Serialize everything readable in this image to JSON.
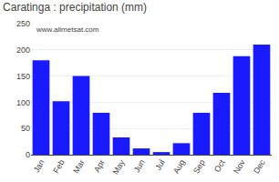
{
  "chart_data": {
    "type": "bar",
    "title": "Caratinga : precipitation (mm)",
    "categories": [
      "Jan",
      "Feb",
      "Mar",
      "Apr",
      "May",
      "Jun",
      "Jul",
      "Aug",
      "Sep",
      "Oct",
      "Nov",
      "Dec"
    ],
    "values": [
      180,
      102,
      150,
      80,
      33,
      12,
      5,
      22,
      80,
      118,
      188,
      210
    ],
    "color": "#1a1aff",
    "ylim": [
      0,
      250
    ],
    "yticks": [
      0,
      50,
      100,
      150,
      200,
      250
    ],
    "grid": true,
    "annotations": [
      "www.allmetsat.com"
    ]
  }
}
